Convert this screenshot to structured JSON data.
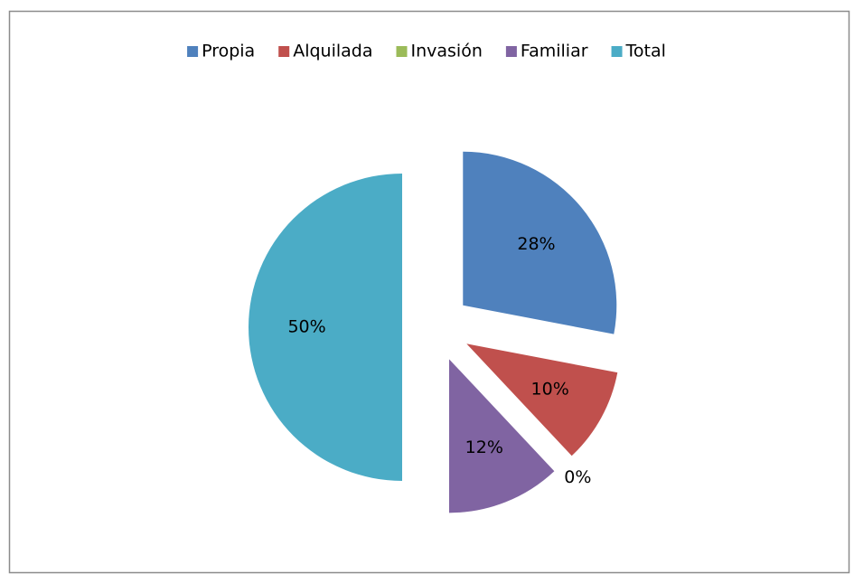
{
  "chart_data": {
    "type": "pie",
    "categories": [
      "Propia",
      "Alquilada",
      "Invasión",
      "Familiar",
      "Total"
    ],
    "values": [
      28,
      10,
      0,
      12,
      50
    ],
    "value_labels": [
      "28%",
      "10%",
      "0%",
      "12%",
      "50%"
    ],
    "colors": [
      "#4f81bd",
      "#c0504d",
      "#9bbb59",
      "#8064a2",
      "#4bacc6"
    ],
    "legend": "top"
  }
}
